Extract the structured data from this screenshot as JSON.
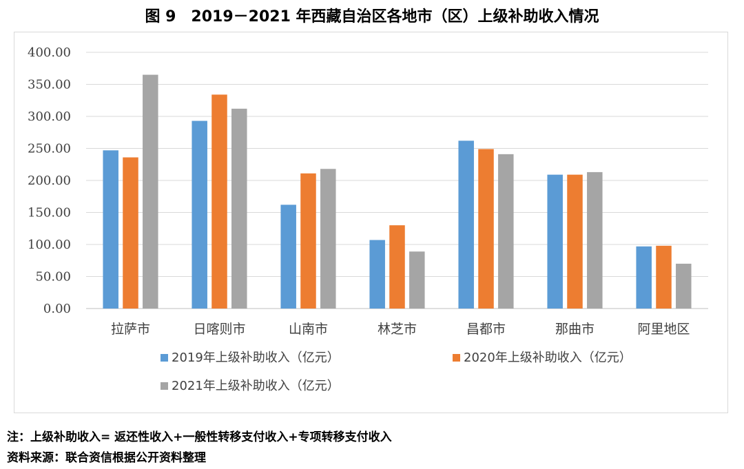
{
  "title": "图 9　2019－2021 年西藏自治区各地市（区）上级补助收入情况",
  "notes": {
    "formula": "注：上级补助收入= 返还性收入+一般性转移支付收入+专项转移支付收入",
    "source": "资料来源：联合资信根据公开资料整理"
  },
  "colors": {
    "s2019": "#5b9bd5",
    "s2020": "#ed7d31",
    "s2021": "#a5a5a5",
    "grid": "#d9d9d9",
    "axis": "#bfbfbf"
  },
  "chart_data": {
    "type": "bar",
    "title": "图 9　2019－2021 年西藏自治区各地市（区）上级补助收入情况",
    "xlabel": "",
    "ylabel": "",
    "ylim": [
      0,
      400
    ],
    "yticks": [
      0,
      50,
      100,
      150,
      200,
      250,
      300,
      350,
      400
    ],
    "ytick_labels": [
      "0.00",
      "50.00",
      "100.00",
      "150.00",
      "200.00",
      "250.00",
      "300.00",
      "350.00",
      "400.00"
    ],
    "grid": true,
    "legend_position": "bottom",
    "categories": [
      "拉萨市",
      "日喀则市",
      "山南市",
      "林芝市",
      "昌都市",
      "那曲市",
      "阿里地区"
    ],
    "series": [
      {
        "name": "2019年上级补助收入（亿元）",
        "color": "#5b9bd5",
        "values": [
          247,
          293,
          162,
          107,
          262,
          209,
          97
        ]
      },
      {
        "name": "2020年上级补助收入（亿元）",
        "color": "#ed7d31",
        "values": [
          236,
          334,
          211,
          130,
          249,
          209,
          98
        ]
      },
      {
        "name": "2021年上级补助收入（亿元）",
        "color": "#a5a5a5",
        "values": [
          365,
          312,
          218,
          89,
          241,
          213,
          70
        ]
      }
    ]
  }
}
